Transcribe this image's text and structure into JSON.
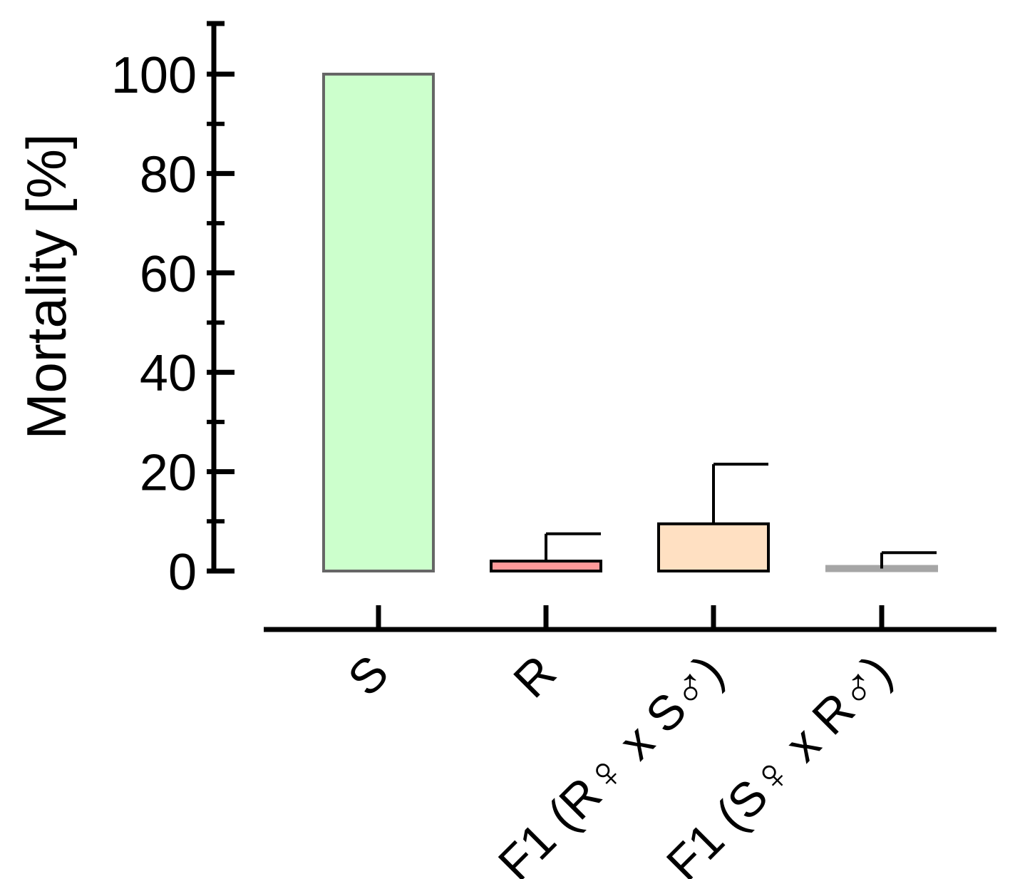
{
  "chart_data": {
    "type": "bar",
    "title": "",
    "xlabel": "",
    "ylabel": "Mortality [%]",
    "ylim": [
      0,
      110
    ],
    "yticks": [
      0,
      20,
      40,
      60,
      80,
      100
    ],
    "ytick_labels": [
      "0",
      "20",
      "40",
      "60",
      "80",
      "100"
    ],
    "grid": false,
    "legend": "none",
    "categories": [
      "S",
      "R",
      "F1 (R♀ x S♂)",
      "F1 (S♀ x R♂)"
    ],
    "values": [
      100,
      2,
      9.5,
      0.5
    ],
    "error_upper": [
      0,
      7.5,
      21.5,
      3.7
    ],
    "colors": {
      "fill": [
        "#ccffcc",
        "#ff9999",
        "#ffe0c2",
        "#a6a6a6"
      ],
      "stroke": [
        "#666666",
        "#000000",
        "#000000",
        "#a6a6a6"
      ]
    }
  }
}
